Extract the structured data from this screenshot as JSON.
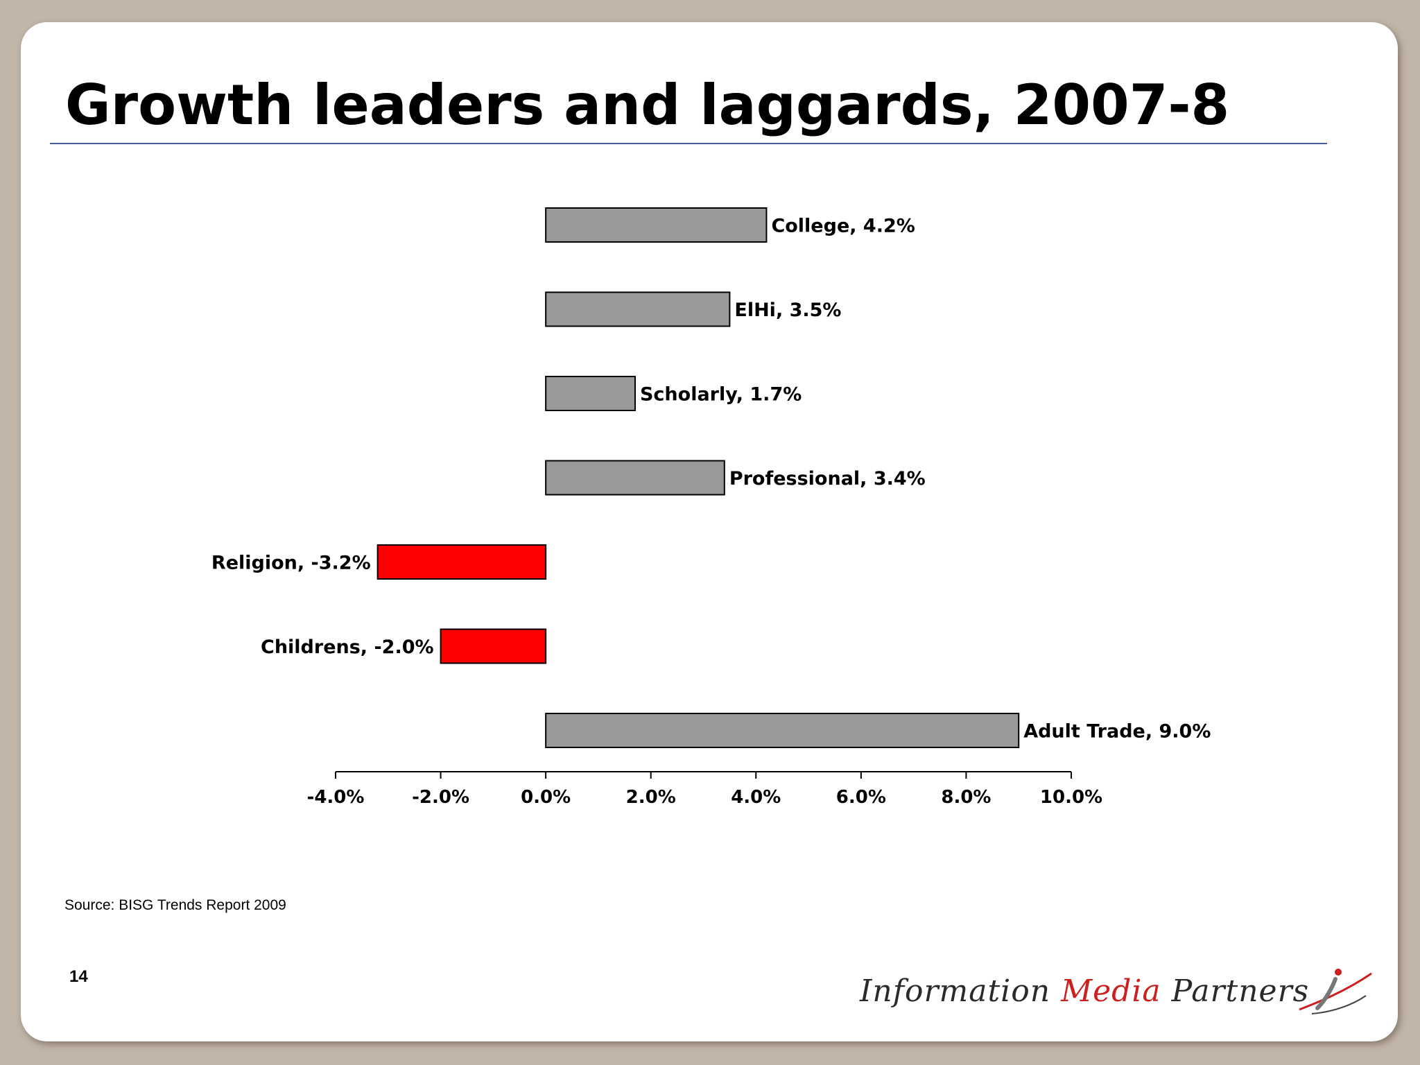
{
  "slide": {
    "title": "Growth leaders and laggards, 2007-8",
    "source": "Source: BISG Trends Report 2009",
    "page_number": "14"
  },
  "logo": {
    "word1": "Information",
    "word2": "Media",
    "word3": "Partners",
    "mark_icon": "swoosh-i-icon"
  },
  "colors": {
    "positive_bar": "#999999",
    "negative_bar": "#ff0000",
    "rule": "#4a5a96",
    "background": "#c2b6a8"
  },
  "chart_data": {
    "type": "bar",
    "orientation": "horizontal",
    "categories": [
      "College",
      "ElHi",
      "Scholarly",
      "Professional",
      "Religion",
      "Childrens",
      "Adult Trade"
    ],
    "values": [
      4.2,
      3.5,
      1.7,
      3.4,
      -3.2,
      -2.0,
      9.0
    ],
    "data_labels": [
      "College, 4.2%",
      "ElHi, 3.5%",
      "Scholarly, 1.7%",
      "Professional, 3.4%",
      "Religion, -3.2%",
      "Childrens, -2.0%",
      "Adult Trade, 9.0%"
    ],
    "xlim": [
      -4.0,
      10.0
    ],
    "x_ticks": [
      -4.0,
      -2.0,
      0.0,
      2.0,
      4.0,
      6.0,
      8.0,
      10.0
    ],
    "x_tick_labels": [
      "-4.0%",
      "-2.0%",
      "0.0%",
      "2.0%",
      "4.0%",
      "6.0%",
      "8.0%",
      "10.0%"
    ],
    "grid": false,
    "legend": "none"
  }
}
